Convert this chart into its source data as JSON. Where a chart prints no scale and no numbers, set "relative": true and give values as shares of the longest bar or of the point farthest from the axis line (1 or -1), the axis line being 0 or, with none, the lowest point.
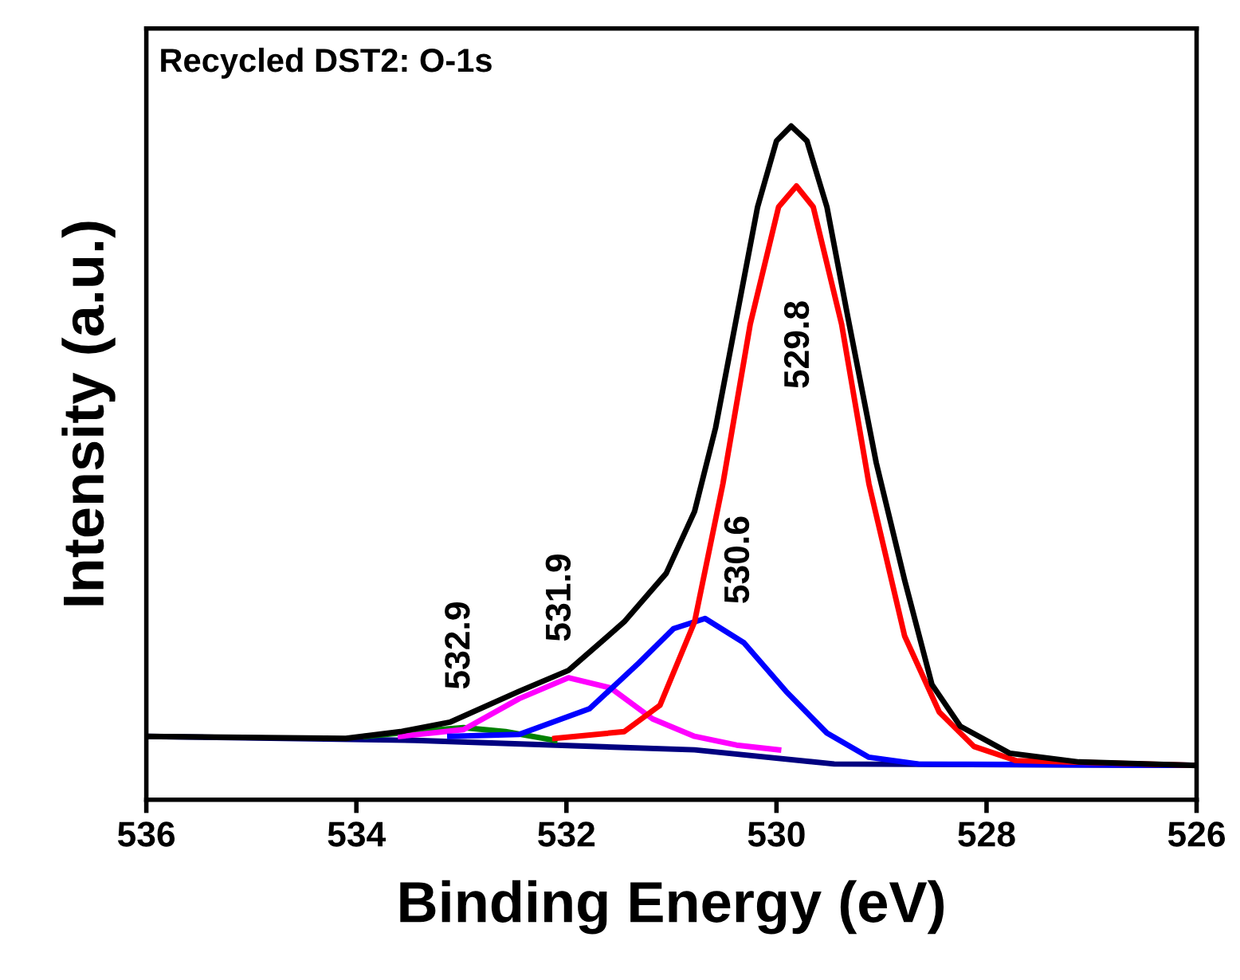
{
  "chart_data": {
    "type": "line",
    "title": "Recycled DST2: O-1s",
    "xlabel": "Binding Energy (eV)",
    "ylabel": "Intensity (a.u.)",
    "relative": true,
    "xlim": [
      536,
      526
    ],
    "xticks": [
      536,
      534,
      532,
      530,
      528,
      526
    ],
    "tick_labels": "x",
    "grid": false,
    "legend": false,
    "marker": "none",
    "line_style": "solid",
    "series": [
      {
        "color": "#000080",
        "x": [
          536.0,
          533.44,
          530.78,
          529.45,
          526.02
        ],
        "values": [
          0.094,
          0.088,
          0.074,
          0.053,
          0.051
        ]
      },
      {
        "color": "#008000",
        "x": [
          533.91,
          533.44,
          532.98,
          532.58,
          532.11
        ],
        "values": [
          0.094,
          0.101,
          0.107,
          0.101,
          0.088
        ]
      },
      {
        "color": "#ff00ff",
        "x": [
          533.58,
          532.98,
          532.45,
          531.98,
          531.58,
          531.18,
          530.78,
          530.38,
          529.98
        ],
        "values": [
          0.094,
          0.104,
          0.15,
          0.181,
          0.166,
          0.12,
          0.094,
          0.081,
          0.074
        ]
      },
      {
        "color": "#0000ff",
        "x": [
          533.11,
          532.45,
          531.78,
          531.31,
          530.98,
          530.68,
          530.31,
          529.91,
          529.52,
          529.12,
          528.65,
          526.02
        ],
        "values": [
          0.094,
          0.097,
          0.135,
          0.203,
          0.254,
          0.269,
          0.233,
          0.161,
          0.099,
          0.063,
          0.053,
          0.051
        ]
      },
      {
        "color": "#ff0000",
        "x": [
          532.11,
          531.45,
          531.11,
          530.78,
          530.51,
          530.25,
          529.98,
          529.81,
          529.65,
          529.38,
          529.12,
          528.78,
          528.45,
          528.12,
          527.72,
          526.02
        ],
        "values": [
          0.091,
          0.101,
          0.14,
          0.264,
          0.469,
          0.706,
          0.88,
          0.911,
          0.88,
          0.706,
          0.469,
          0.243,
          0.13,
          0.079,
          0.058,
          0.051
        ]
      },
      {
        "color": "#000000",
        "x": [
          536.0,
          534.1,
          533.58,
          533.11,
          532.45,
          531.98,
          531.45,
          531.05,
          530.78,
          530.58,
          530.38,
          530.18,
          530.0,
          529.86,
          529.71,
          529.52,
          529.32,
          529.05,
          528.78,
          528.52,
          528.25,
          527.78,
          527.12,
          526.02
        ],
        "values": [
          0.094,
          0.091,
          0.101,
          0.115,
          0.161,
          0.192,
          0.264,
          0.336,
          0.428,
          0.552,
          0.716,
          0.88,
          0.978,
          1.0,
          0.978,
          0.88,
          0.716,
          0.5,
          0.326,
          0.171,
          0.109,
          0.069,
          0.056,
          0.051
        ]
      }
    ],
    "annotations": [
      "529.8",
      "530.6",
      "531.9",
      "532.9"
    ]
  }
}
